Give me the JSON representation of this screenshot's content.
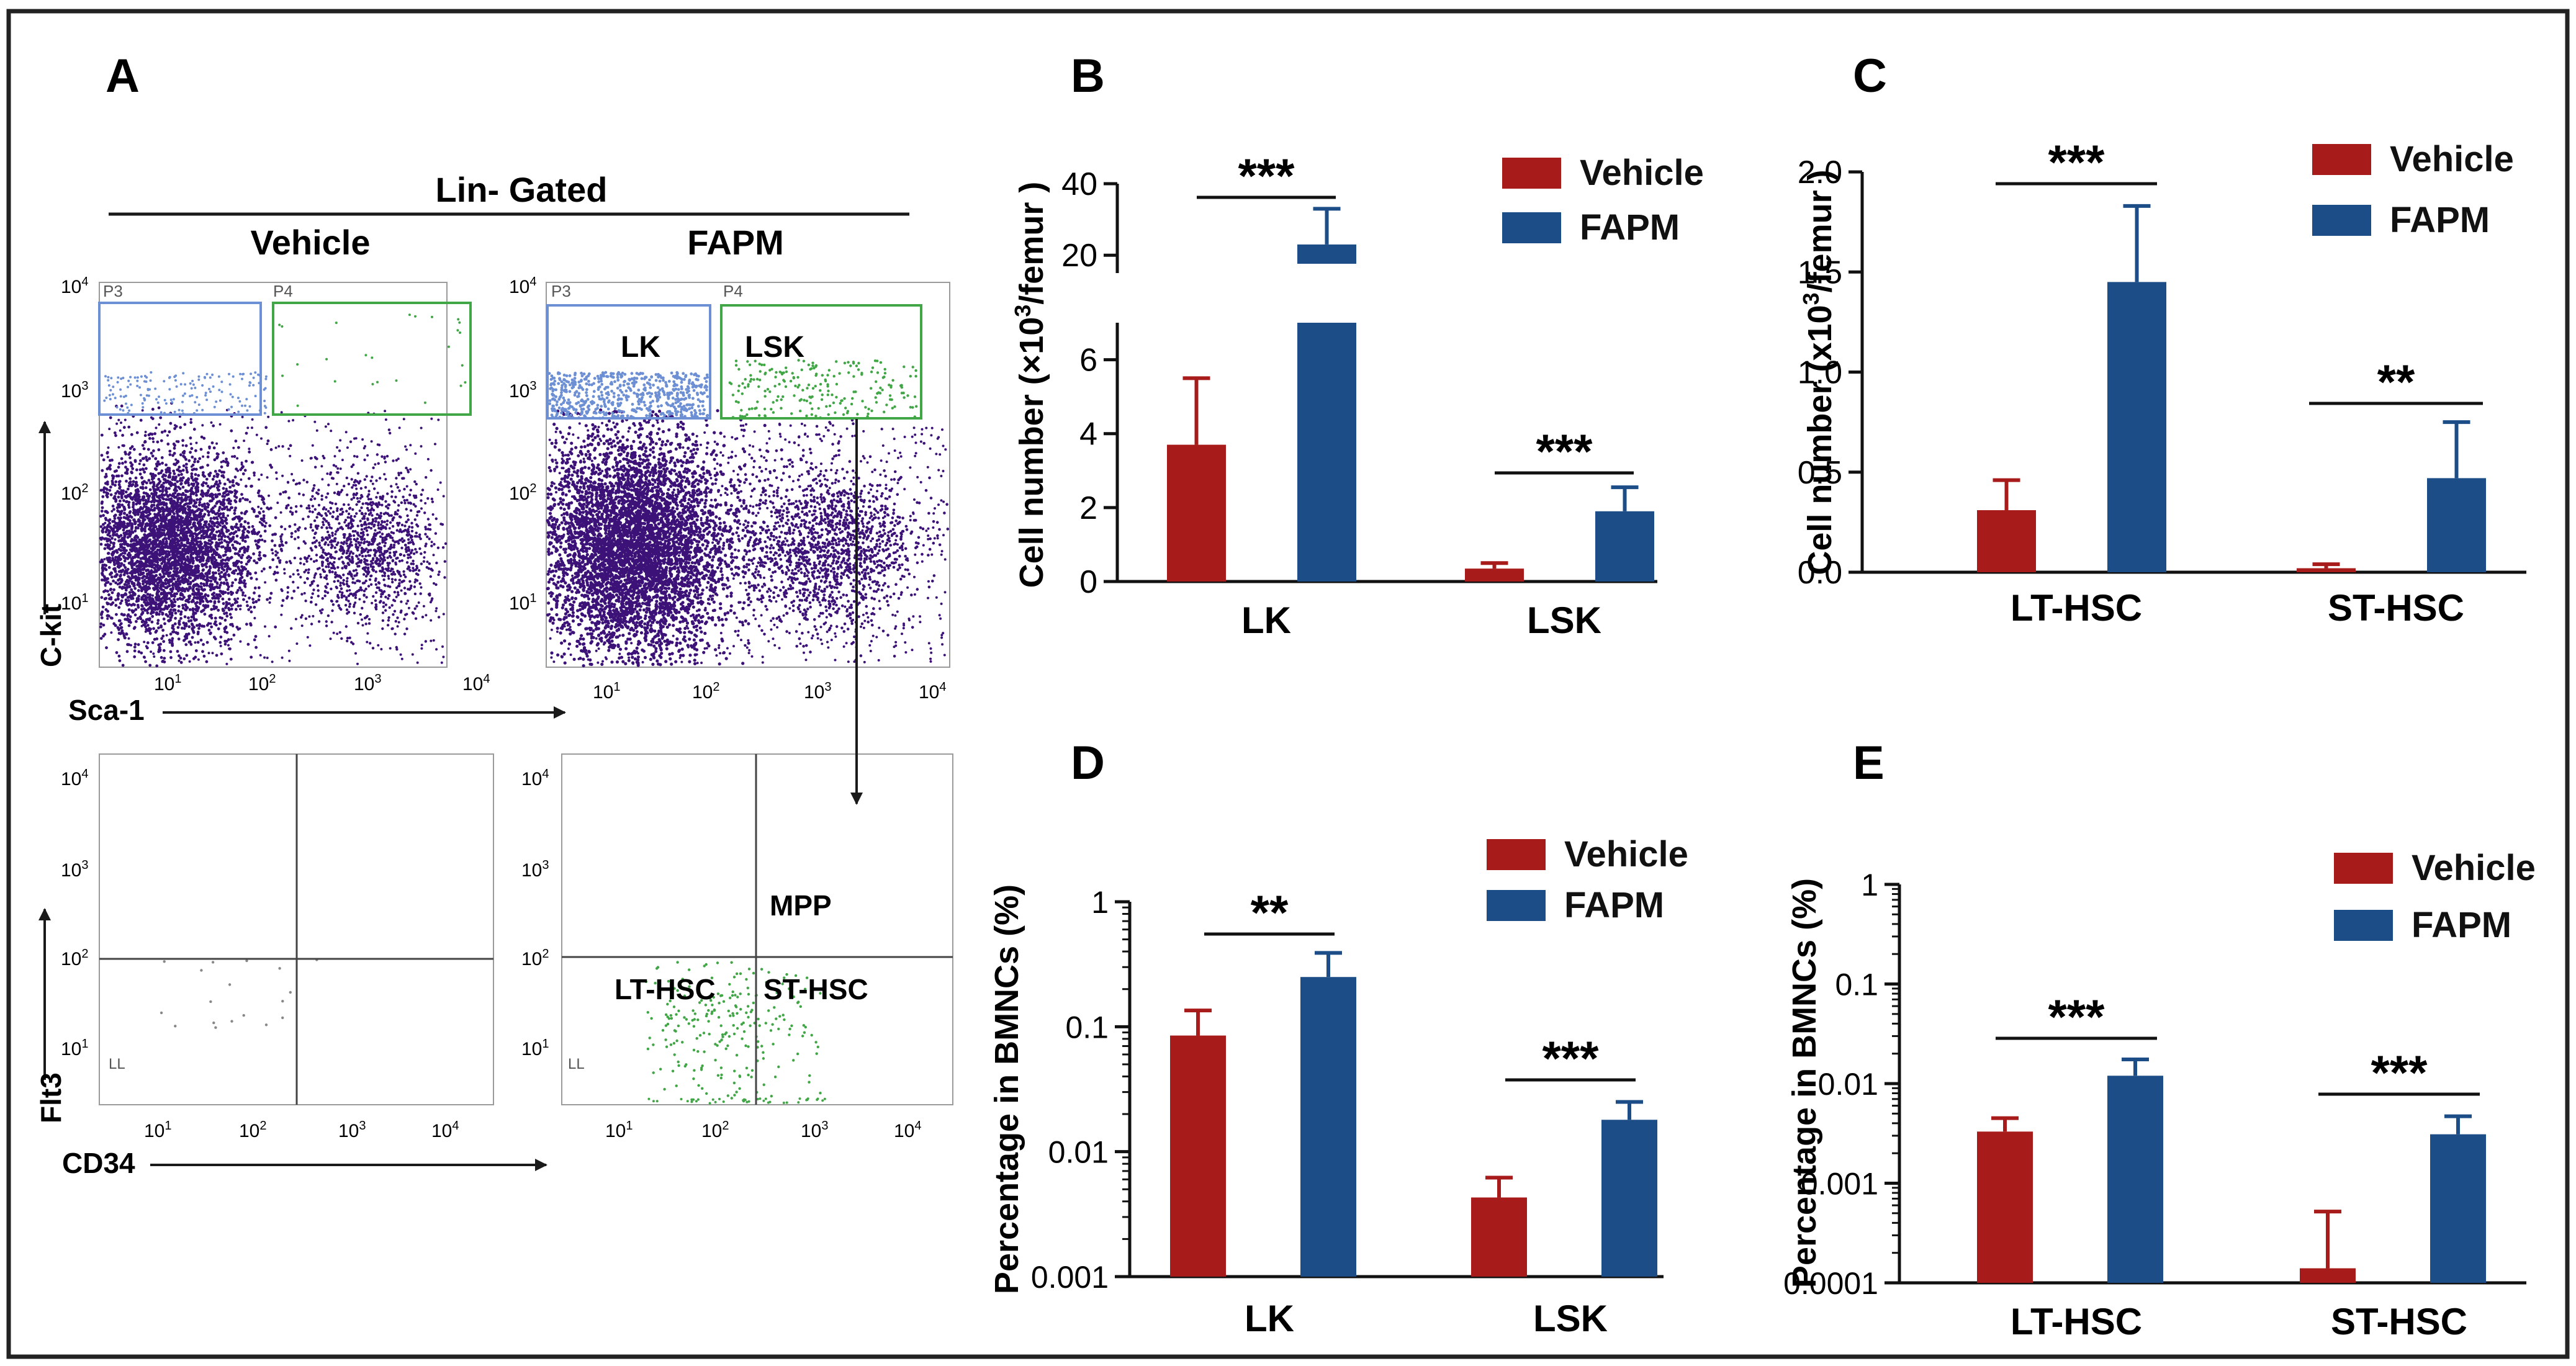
{
  "colors": {
    "vehicle": "#a71b1b",
    "fapm": "#1c4d87",
    "dots": "#3c1278",
    "gate_blue": "#6d8fd4",
    "gate_green": "#41a645",
    "axis": "#1a1a1a"
  },
  "panels": {
    "A": {
      "letter": "A",
      "header": "Lin- Gated",
      "vehicle_title": "Vehicle",
      "fapm_title": "FAPM",
      "gate_p3": "P3",
      "gate_p4": "P4",
      "lk_label": "LK",
      "lsk_label": "LSK",
      "decades": [
        "10",
        "10",
        "10",
        "10"
      ],
      "exps": [
        "1",
        "2",
        "3",
        "4"
      ],
      "ckit_label": "C-kit",
      "sca1_label": "Sca-1",
      "flt3_label": "Flt3",
      "cd34_label": "CD34",
      "mpp_label": "MPP",
      "lthsc_label": "LT-HSC",
      "sthsc_label": "ST-HSC",
      "ll_label": "LL"
    },
    "B": {
      "letter": "B"
    },
    "C": {
      "letter": "C"
    },
    "D": {
      "letter": "D"
    },
    "E": {
      "letter": "E"
    }
  },
  "chart_data": [
    {
      "panel": "B",
      "type": "bar",
      "scale": "broken-linear",
      "categories": [
        "LK",
        "LSK"
      ],
      "series": [
        {
          "name": "Vehicle",
          "values": [
            3.7,
            0.35
          ],
          "errors": [
            1.8,
            0.15
          ]
        },
        {
          "name": "FAPM",
          "values": [
            23,
            1.9
          ],
          "errors": [
            10,
            0.65
          ]
        }
      ],
      "ylabel_prefix": "Cell number (×10",
      "ylabel_sup": "3",
      "ylabel_suffix": "/femur )",
      "ylim_lower": [
        0,
        7
      ],
      "ylim_upper": [
        15,
        40
      ],
      "yticks_lower": [
        "0",
        "2",
        "4",
        "6"
      ],
      "yticks_upper": [
        "20",
        "40"
      ],
      "significance": [
        "***",
        "***"
      ]
    },
    {
      "panel": "C",
      "type": "bar",
      "scale": "linear",
      "categories": [
        "LT-HSC",
        "ST-HSC"
      ],
      "series": [
        {
          "name": "Vehicle",
          "values": [
            0.31,
            0.02
          ],
          "errors": [
            0.15,
            0.02
          ]
        },
        {
          "name": "FAPM",
          "values": [
            1.45,
            0.47
          ],
          "errors": [
            0.38,
            0.28
          ]
        }
      ],
      "ylabel_prefix": "Cell number (x10",
      "ylabel_sup": "3",
      "ylabel_suffix": "/femur )",
      "ylim": [
        0,
        2.0
      ],
      "yticks": [
        "0.0",
        "0.5",
        "1.0",
        "1.5",
        "2.0"
      ],
      "significance": [
        "***",
        "**"
      ]
    },
    {
      "panel": "D",
      "type": "bar",
      "scale": "log",
      "categories": [
        "LK",
        "LSK"
      ],
      "series": [
        {
          "name": "Vehicle",
          "values": [
            0.085,
            0.0043
          ],
          "err_top": [
            0.135,
            0.0062
          ]
        },
        {
          "name": "FAPM",
          "values": [
            0.25,
            0.018
          ],
          "err_top": [
            0.39,
            0.025
          ]
        }
      ],
      "ylabel": "Percentage in BMNCs (%)",
      "ylim": [
        0.001,
        1
      ],
      "yticks": [
        "0.001",
        "0.01",
        "0.1",
        "1"
      ],
      "significance": [
        "**",
        "***"
      ]
    },
    {
      "panel": "E",
      "type": "bar",
      "scale": "log",
      "categories": [
        "LT-HSC",
        "ST-HSC"
      ],
      "series": [
        {
          "name": "Vehicle",
          "values": [
            0.0033,
            0.00014
          ],
          "err_top": [
            0.0045,
            0.00052
          ]
        },
        {
          "name": "FAPM",
          "values": [
            0.012,
            0.0031
          ],
          "err_top": [
            0.0175,
            0.0047
          ]
        }
      ],
      "ylabel": "Percentage in BMNCs (%)",
      "ylim": [
        0.0001,
        1
      ],
      "yticks": [
        "0.0001",
        "0.001",
        "0.01",
        "0.1",
        "1"
      ],
      "significance": [
        "***",
        "***"
      ]
    }
  ]
}
